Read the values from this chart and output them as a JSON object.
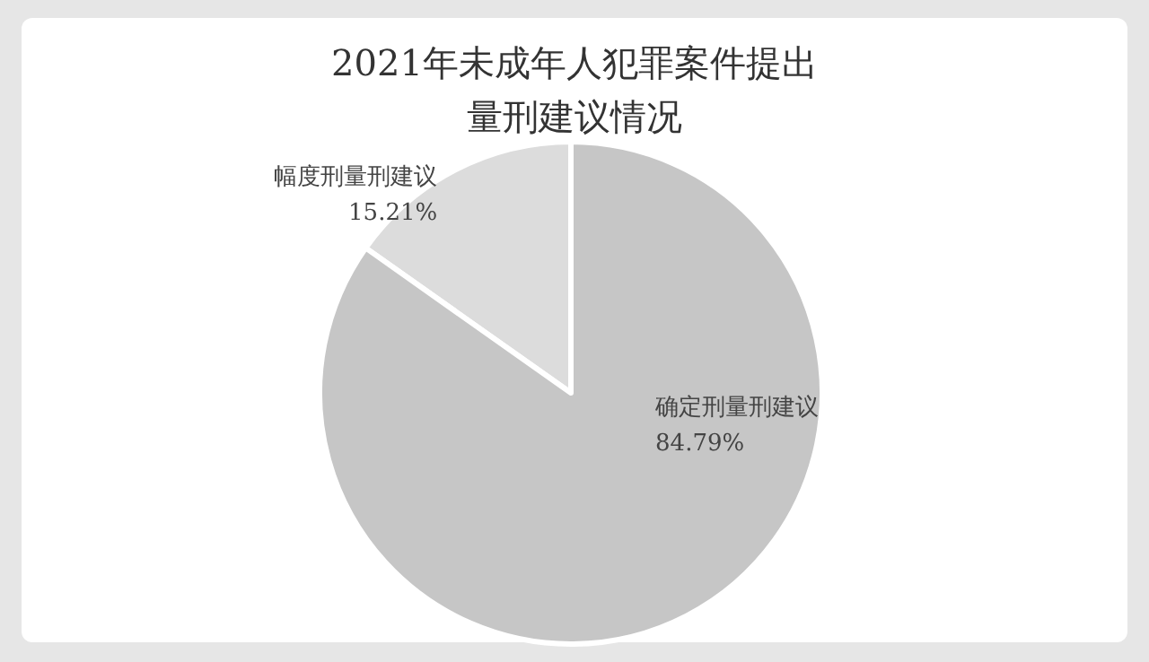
{
  "chart_data": {
    "type": "pie",
    "title": "2021年未成年人犯罪案件提出量刑建议情况",
    "categories": [
      "幅度刑量刑建议",
      "确定刑量刑建议"
    ],
    "values": [
      15.21,
      84.79
    ],
    "colors": [
      "#dcdcdc",
      "#c6c6c6"
    ],
    "value_labels": [
      "15.21%",
      "84.79%"
    ]
  }
}
